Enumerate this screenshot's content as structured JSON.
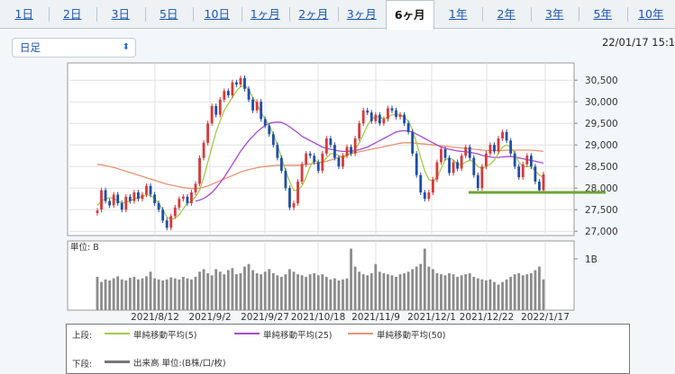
{
  "tabs": [
    {
      "label": "1日",
      "active": false
    },
    {
      "label": "2日",
      "active": false
    },
    {
      "label": "3日",
      "active": false
    },
    {
      "label": "5日",
      "active": false
    },
    {
      "label": "10日",
      "active": false
    },
    {
      "label": "1ヶ月",
      "active": false
    },
    {
      "label": "2ヶ月",
      "active": false
    },
    {
      "label": "3ヶ月",
      "active": false
    },
    {
      "label": "6ヶ月",
      "active": true
    },
    {
      "label": "1年",
      "active": false
    },
    {
      "label": "2年",
      "active": false
    },
    {
      "label": "3年",
      "active": false
    },
    {
      "label": "5年",
      "active": false
    },
    {
      "label": "10年",
      "active": false
    }
  ],
  "period_select": {
    "value": "日足"
  },
  "datetime": "22/01/17 15:1",
  "colors": {
    "up": "#d63a3a",
    "down": "#1f4ea8",
    "ma5": "#a8c84e",
    "ma25": "#a64bd0",
    "ma50": "#e99373",
    "support": "#6ea335",
    "volume": "#8c8c8c"
  },
  "chart_data": {
    "type": "candlestick",
    "price_ticks": [
      "30,500",
      "30,000",
      "29,500",
      "29,000",
      "28,500",
      "28,000",
      "27,500",
      "27,000"
    ],
    "ylim": [
      26900,
      30900
    ],
    "x_labels": [
      "2021/8/12",
      "2021/9/2",
      "2021/9/27",
      "2021/10/18",
      "2021/11/9",
      "2021/12/1",
      "2021/12/22",
      "2022/1/17"
    ],
    "support_level": 27900,
    "candles": [
      [
        27420,
        27480
      ],
      [
        27500,
        27950
      ],
      [
        27950,
        27700
      ],
      [
        27700,
        27600
      ],
      [
        27600,
        27850
      ],
      [
        27850,
        27650
      ],
      [
        27650,
        27500
      ],
      [
        27500,
        27800
      ],
      [
        27800,
        27700
      ],
      [
        27700,
        27900
      ],
      [
        27900,
        27750
      ],
      [
        27750,
        27850
      ],
      [
        27850,
        28050
      ],
      [
        28050,
        27850
      ],
      [
        27850,
        27650
      ],
      [
        27650,
        27500
      ],
      [
        27500,
        27250
      ],
      [
        27250,
        27080
      ],
      [
        27080,
        27350
      ],
      [
        27350,
        27550
      ],
      [
        27550,
        27750
      ],
      [
        27750,
        27800
      ],
      [
        27800,
        27650
      ],
      [
        27650,
        27900
      ],
      [
        27900,
        28100
      ],
      [
        28100,
        28700
      ],
      [
        28700,
        29050
      ],
      [
        29050,
        29500
      ],
      [
        29500,
        29900
      ],
      [
        29900,
        29700
      ],
      [
        29700,
        30050
      ],
      [
        30050,
        30250
      ],
      [
        30250,
        30150
      ],
      [
        30150,
        30450
      ],
      [
        30450,
        30400
      ],
      [
        30400,
        30550
      ],
      [
        30550,
        30300
      ],
      [
        30300,
        30050
      ],
      [
        30050,
        29800
      ],
      [
        29800,
        30000
      ],
      [
        30000,
        29600
      ],
      [
        29600,
        29450
      ],
      [
        29450,
        29250
      ],
      [
        29250,
        29000
      ],
      [
        29000,
        28700
      ],
      [
        28700,
        28400
      ],
      [
        28400,
        28000
      ],
      [
        28000,
        27550
      ],
      [
        27550,
        27650
      ],
      [
        27650,
        28150
      ],
      [
        28150,
        28550
      ],
      [
        28550,
        28800
      ],
      [
        28800,
        28750
      ],
      [
        28750,
        28600
      ],
      [
        28600,
        28400
      ],
      [
        28400,
        28800
      ],
      [
        28800,
        29150
      ],
      [
        29150,
        29000
      ],
      [
        29000,
        28700
      ],
      [
        28700,
        28500
      ],
      [
        28500,
        28750
      ],
      [
        28750,
        28950
      ],
      [
        28950,
        28800
      ],
      [
        28800,
        29150
      ],
      [
        29150,
        29500
      ],
      [
        29500,
        29800
      ],
      [
        29800,
        29750
      ],
      [
        29750,
        29550
      ],
      [
        29550,
        29700
      ],
      [
        29700,
        29500
      ],
      [
        29500,
        29600
      ],
      [
        29600,
        29850
      ],
      [
        29850,
        29800
      ],
      [
        29800,
        29650
      ],
      [
        29650,
        29700
      ],
      [
        29700,
        29500
      ],
      [
        29500,
        29300
      ],
      [
        29300,
        28800
      ],
      [
        28800,
        28300
      ],
      [
        28300,
        27900
      ],
      [
        27900,
        27750
      ],
      [
        27750,
        27900
      ],
      [
        27900,
        28200
      ],
      [
        28200,
        28600
      ],
      [
        28600,
        28900
      ],
      [
        28900,
        28700
      ],
      [
        28700,
        28350
      ],
      [
        28350,
        28600
      ],
      [
        28600,
        28450
      ],
      [
        28450,
        28750
      ],
      [
        28750,
        28950
      ],
      [
        28950,
        28700
      ],
      [
        28700,
        28300
      ],
      [
        28300,
        28000
      ],
      [
        28000,
        28500
      ],
      [
        28500,
        28800
      ],
      [
        28800,
        29000
      ],
      [
        29000,
        28850
      ],
      [
        28850,
        29150
      ],
      [
        29150,
        29300
      ],
      [
        29300,
        29100
      ],
      [
        29100,
        28800
      ],
      [
        28800,
        28500
      ],
      [
        28500,
        28250
      ],
      [
        28250,
        28550
      ],
      [
        28550,
        28750
      ],
      [
        28750,
        28500
      ],
      [
        28500,
        28150
      ],
      [
        28150,
        27950
      ],
      [
        27950,
        28320
      ]
    ],
    "ma5": [
      27600,
      27700,
      27750,
      27780,
      27760,
      27700,
      27650,
      27680,
      27700,
      27750,
      27780,
      27800,
      27850,
      27820,
      27760,
      27640,
      27490,
      27330,
      27280,
      27300,
      27380,
      27520,
      27650,
      27700,
      27800,
      27950,
      28250,
      28600,
      28950,
      29300,
      29550,
      29800,
      29950,
      30100,
      30250,
      30350,
      30380,
      30280,
      30100,
      29950,
      29750,
      29600,
      29450,
      29250,
      29000,
      28700,
      28400,
      28150,
      27950,
      27950,
      28050,
      28250,
      28500,
      28650,
      28600,
      28600,
      28700,
      28800,
      28800,
      28750,
      28700,
      28750,
      28800,
      28900,
      29050,
      29250,
      29450,
      29600,
      29650,
      29650,
      29600,
      29650,
      29700,
      29700,
      29700,
      29650,
      29550,
      29350,
      29050,
      28700,
      28400,
      28200,
      28150,
      28250,
      28450,
      28650,
      28700,
      28650,
      28550,
      28550,
      28600,
      28650,
      28600,
      28500,
      28450,
      28500,
      28550,
      28650,
      28800,
      28950,
      29000,
      28950,
      28800,
      28600,
      28500,
      28500,
      28500,
      28400,
      28300,
      28250
    ],
    "ma25": [
      null,
      null,
      null,
      null,
      null,
      null,
      null,
      null,
      null,
      null,
      null,
      null,
      null,
      null,
      null,
      null,
      null,
      null,
      null,
      null,
      null,
      null,
      null,
      null,
      27700,
      27720,
      27760,
      27820,
      27900,
      28000,
      28120,
      28250,
      28400,
      28550,
      28700,
      28850,
      28980,
      29100,
      29200,
      29300,
      29380,
      29450,
      29500,
      29520,
      29530,
      29520,
      29480,
      29420,
      29350,
      29280,
      29200,
      29150,
      29100,
      29050,
      29000,
      28950,
      28920,
      28900,
      28880,
      28860,
      28850,
      28850,
      28860,
      28870,
      28890,
      28920,
      28950,
      29000,
      29050,
      29100,
      29150,
      29200,
      29250,
      29300,
      29320,
      29330,
      29320,
      29300,
      29250,
      29200,
      29150,
      29100,
      29050,
      29000,
      28950,
      28920,
      28900,
      28880,
      28860,
      28850,
      28840,
      28830,
      28810,
      28790,
      28760,
      28740,
      28720,
      28710,
      28710,
      28720,
      28730,
      28730,
      28720,
      28700,
      28680,
      28660,
      28640,
      28620,
      28600,
      28580
    ],
    "ma50": [
      28550,
      28540,
      28520,
      28500,
      28480,
      28450,
      28420,
      28390,
      28360,
      28330,
      28300,
      28270,
      28240,
      28210,
      28180,
      28150,
      28120,
      28090,
      28070,
      28050,
      28030,
      28010,
      28000,
      27990,
      27990,
      28000,
      28020,
      28050,
      28090,
      28130,
      28170,
      28210,
      28250,
      28290,
      28330,
      28370,
      28400,
      28430,
      28450,
      28470,
      28490,
      28500,
      28510,
      28520,
      28530,
      28530,
      28530,
      28530,
      28530,
      28530,
      28540,
      28550,
      28560,
      28570,
      28580,
      28600,
      28620,
      28650,
      28680,
      28710,
      28740,
      28770,
      28800,
      28820,
      28840,
      28860,
      28880,
      28900,
      28920,
      28940,
      28960,
      28980,
      29000,
      29020,
      29040,
      29050,
      29050,
      29050,
      29040,
      29030,
      29020,
      29010,
      29000,
      28990,
      28980,
      28970,
      28960,
      28950,
      28940,
      28930,
      28920,
      28910,
      28900,
      28890,
      28880,
      28870,
      28870,
      28870,
      28870,
      28870,
      28880,
      28880,
      28880,
      28880,
      28880,
      28880,
      28880,
      28870,
      28860,
      28850
    ],
    "volume_unit": "単位: B",
    "volume_tick": "1B",
    "volume": [
      0.65,
      0.55,
      0.6,
      0.58,
      0.62,
      0.66,
      0.6,
      0.58,
      0.63,
      0.65,
      0.6,
      0.62,
      0.66,
      0.75,
      0.62,
      0.6,
      0.58,
      0.6,
      0.64,
      0.62,
      0.6,
      0.65,
      0.62,
      0.6,
      0.65,
      0.75,
      0.8,
      0.72,
      0.68,
      0.8,
      0.75,
      0.7,
      0.78,
      0.82,
      0.7,
      0.72,
      0.85,
      0.9,
      0.78,
      0.72,
      0.7,
      0.75,
      0.8,
      0.72,
      0.68,
      0.65,
      0.7,
      0.8,
      0.75,
      0.7,
      0.68,
      0.65,
      0.7,
      0.72,
      0.68,
      0.7,
      0.65,
      0.6,
      0.62,
      0.58,
      0.6,
      0.62,
      1.2,
      0.85,
      0.75,
      0.7,
      0.68,
      0.72,
      0.9,
      0.75,
      0.72,
      0.7,
      0.68,
      0.65,
      0.7,
      0.72,
      0.75,
      0.8,
      0.85,
      0.9,
      1.2,
      0.85,
      0.8,
      0.72,
      0.7,
      0.68,
      0.72,
      0.7,
      0.65,
      0.68,
      0.7,
      0.72,
      0.65,
      0.62,
      0.6,
      0.58,
      0.6,
      0.55,
      0.5,
      0.55,
      0.6,
      0.65,
      0.7,
      0.72,
      0.68,
      0.7,
      0.72,
      0.78,
      0.85,
      0.6
    ],
    "legend": {
      "upper_label": "上段:",
      "lower_label": "下段:",
      "items": [
        {
          "name": "単純移動平均(5)",
          "color": "#a8c84e"
        },
        {
          "name": "単純移動平均(25)",
          "color": "#a64bd0"
        },
        {
          "name": "単純移動平均(50)",
          "color": "#e99373"
        }
      ],
      "volume_item": {
        "name": "出来高 単位:(B株/口/枚)",
        "color": "#777777"
      }
    }
  }
}
